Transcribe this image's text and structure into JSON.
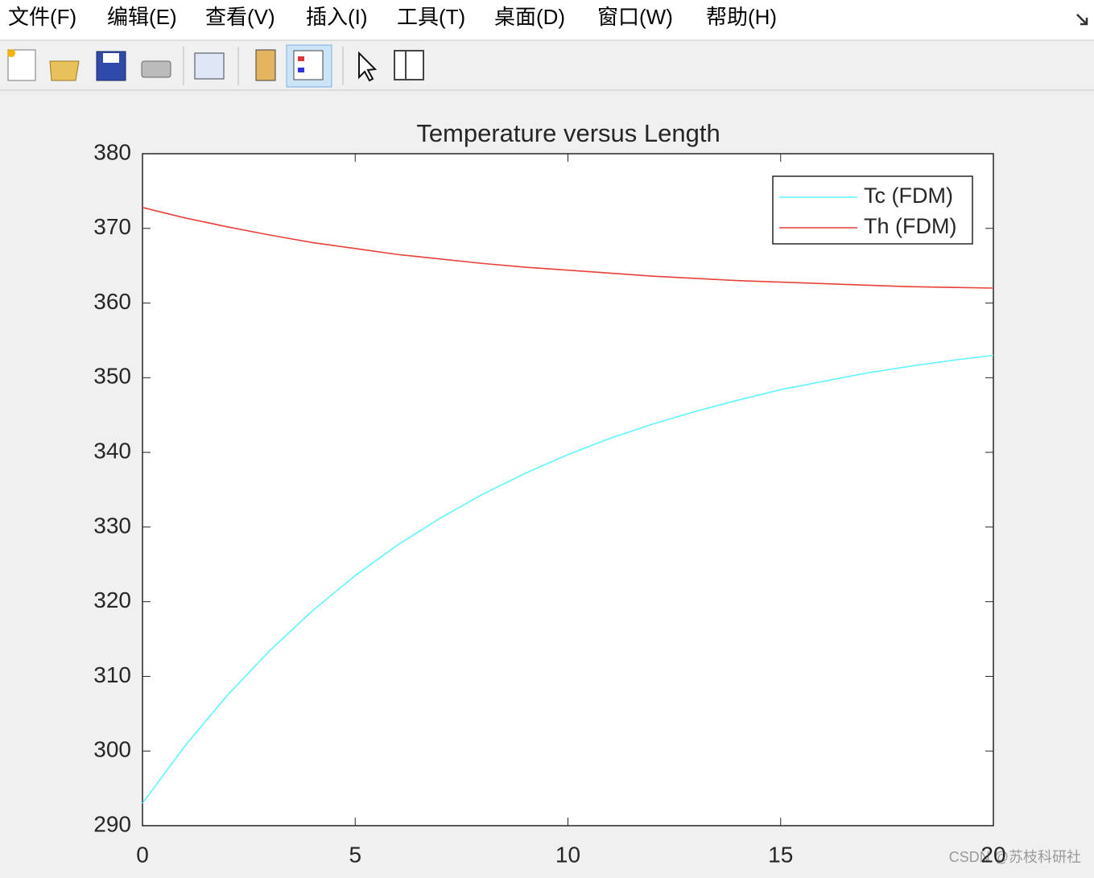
{
  "menu": [
    "文件(F)",
    "编辑(E)",
    "查看(V)",
    "插入(I)",
    "工具(T)",
    "桌面(D)",
    "窗口(W)",
    "帮助(H)"
  ],
  "chart_data": {
    "type": "line",
    "title": "Temperature versus Length",
    "x": [
      0,
      1,
      2,
      3,
      4,
      5,
      6,
      7,
      8,
      9,
      10,
      11,
      12,
      13,
      14,
      15,
      16,
      17,
      18,
      19,
      20
    ],
    "series": [
      {
        "name": "Tc (FDM)",
        "color": "#5ff5ff",
        "values": [
          293.0,
          300.7,
          307.5,
          313.5,
          318.8,
          323.5,
          327.6,
          331.2,
          334.4,
          337.2,
          339.7,
          341.9,
          343.8,
          345.5,
          347.0,
          348.4,
          349.5,
          350.6,
          351.5,
          352.3,
          353.0
        ]
      },
      {
        "name": "Th (FDM)",
        "color": "#e8413a",
        "values": [
          372.8,
          371.4,
          370.2,
          369.1,
          368.1,
          367.3,
          366.5,
          365.9,
          365.3,
          364.8,
          364.4,
          364.0,
          363.6,
          363.3,
          363.0,
          362.8,
          362.6,
          362.4,
          362.2,
          362.1,
          362.0
        ]
      }
    ],
    "xlim": [
      0,
      20
    ],
    "xticks": [
      0,
      5,
      10,
      15,
      20
    ],
    "ylim": [
      290,
      380
    ],
    "yticks": [
      290,
      300,
      310,
      320,
      330,
      340,
      350,
      360,
      370,
      380
    ],
    "grid": false,
    "legend": "northeast"
  },
  "watermark": "CSDN @苏枝科研社"
}
